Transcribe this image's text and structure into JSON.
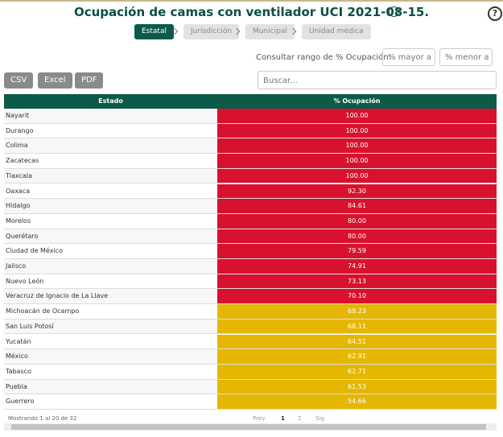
{
  "header": {
    "title": "Ocupación de camas con ventilador UCI 2021-08-15.",
    "help": "?"
  },
  "tabs": [
    {
      "label": "Estatal",
      "active": true
    },
    {
      "label": "Jurisdicción",
      "active": false
    },
    {
      "label": "Municipal",
      "active": false
    },
    {
      "label": "Unidad médica",
      "active": false
    }
  ],
  "filter": {
    "label": "Consultar rango de % Ocupación:",
    "min_placeholder": "% mayor a",
    "max_placeholder": "% menor a"
  },
  "buttons": [
    "CSV",
    "Excel",
    "PDF"
  ],
  "search_placeholder": "Buscar...",
  "table": {
    "columns": [
      "Estado",
      "% Ocupación"
    ],
    "rows": [
      {
        "estado": "Nayarit",
        "ocupacion": "100.00",
        "color": "#d8122e"
      },
      {
        "estado": "Durango",
        "ocupacion": "100.00",
        "color": "#d8122e"
      },
      {
        "estado": "Colima",
        "ocupacion": "100.00",
        "color": "#d8122e"
      },
      {
        "estado": "Zacatecas",
        "ocupacion": "100.00",
        "color": "#d8122e"
      },
      {
        "estado": "Tlaxcala",
        "ocupacion": "100.00",
        "color": "#d8122e"
      },
      {
        "estado": "Oaxaca",
        "ocupacion": "92.30",
        "color": "#d8122e"
      },
      {
        "estado": "Hidalgo",
        "ocupacion": "84.61",
        "color": "#d8122e"
      },
      {
        "estado": "Morelos",
        "ocupacion": "80.00",
        "color": "#d8122e"
      },
      {
        "estado": "Querétaro",
        "ocupacion": "80.00",
        "color": "#d8122e"
      },
      {
        "estado": "Ciudad de México",
        "ocupacion": "79.59",
        "color": "#d8122e"
      },
      {
        "estado": "Jalisco",
        "ocupacion": "74.91",
        "color": "#d8122e"
      },
      {
        "estado": "Nuevo León",
        "ocupacion": "73.13",
        "color": "#d8122e"
      },
      {
        "estado": "Veracruz de Ignacio de La Llave",
        "ocupacion": "70.10",
        "color": "#d8122e"
      },
      {
        "estado": "Michoacán de Ocampo",
        "ocupacion": "69.23",
        "color": "#e5b700"
      },
      {
        "estado": "San Luis Potosí",
        "ocupacion": "68.11",
        "color": "#e5b700"
      },
      {
        "estado": "Yucatán",
        "ocupacion": "64.51",
        "color": "#e5b700"
      },
      {
        "estado": "México",
        "ocupacion": "62.91",
        "color": "#e5b700"
      },
      {
        "estado": "Tabasco",
        "ocupacion": "62.71",
        "color": "#e5b700"
      },
      {
        "estado": "Puebla",
        "ocupacion": "61.53",
        "color": "#e5b700"
      },
      {
        "estado": "Guerrero",
        "ocupacion": "54.66",
        "color": "#e5b700"
      }
    ]
  },
  "footer": {
    "info": "Mostrando 1 al 20 de 32",
    "pagination": [
      "Prev.",
      "1",
      "2",
      "Sig."
    ]
  }
}
